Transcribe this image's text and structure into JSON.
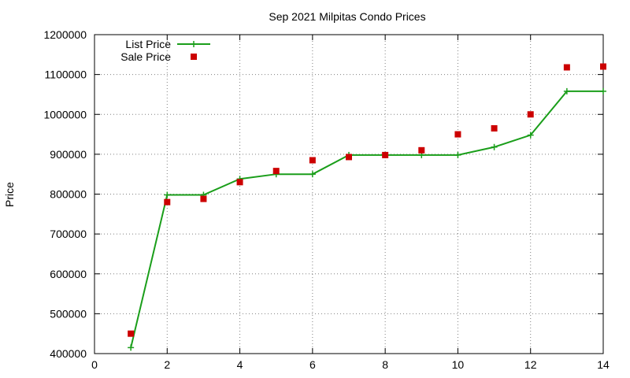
{
  "chart_data": {
    "type": "line",
    "title": "Sep 2021 Milpitas Condo Prices",
    "xlabel": "",
    "ylabel": "Price",
    "xlim": [
      0,
      14
    ],
    "ylim": [
      400000,
      1200000
    ],
    "xticks": [
      0,
      2,
      4,
      6,
      8,
      10,
      12,
      14
    ],
    "yticks": [
      400000,
      500000,
      600000,
      700000,
      800000,
      900000,
      1000000,
      1100000,
      1200000
    ],
    "grid": true,
    "legend": "top-left",
    "series": [
      {
        "name": "List Price",
        "style": "linespoints",
        "marker": "plus",
        "color": "#1a9e1a",
        "x": [
          1,
          2,
          3,
          4,
          5,
          6,
          7,
          8,
          9,
          10,
          11,
          12,
          13,
          14
        ],
        "values": [
          415000,
          798000,
          798000,
          838000,
          850000,
          850000,
          898000,
          898000,
          898000,
          898000,
          918000,
          948000,
          1058000,
          1058000
        ]
      },
      {
        "name": "Sale Price",
        "style": "points",
        "marker": "square",
        "color": "#cc0000",
        "x": [
          1,
          2,
          3,
          4,
          5,
          6,
          7,
          8,
          9,
          10,
          11,
          12,
          13,
          14
        ],
        "values": [
          450000,
          780000,
          788000,
          830000,
          858000,
          885000,
          893000,
          898000,
          910000,
          950000,
          965000,
          1000000,
          1118000,
          1120000
        ]
      }
    ]
  }
}
